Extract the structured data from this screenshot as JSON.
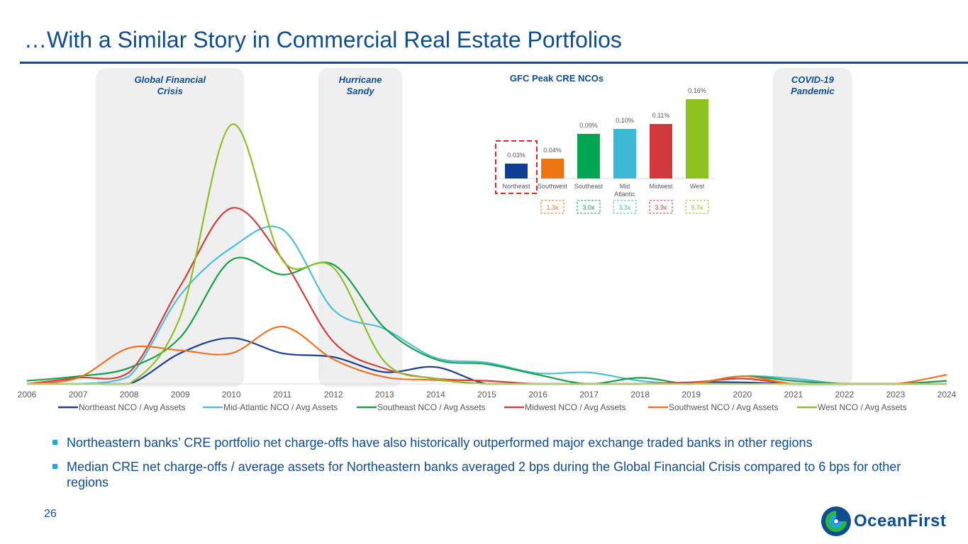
{
  "page": {
    "title": "…With a Similar Story in Commercial Real Estate Portfolios",
    "page_number": "26",
    "bullets": [
      "Northeastern banks’ CRE portfolio net charge-offs have also historically outperformed major exchange traded banks in other regions",
      "Median CRE net charge-offs / average assets for Northeastern banks averaged 2 bps during the Global Financial Crisis compared to 6 bps for other regions"
    ],
    "logo": {
      "text": "OceanFirst",
      "colors": [
        "#0f4d8c",
        "#2db34a",
        "#20a6e0"
      ]
    }
  },
  "colors": {
    "title": "#0f4d8c",
    "bullet_square": "#20a6e0",
    "event_band": "#efefef"
  },
  "chart_data": [
    {
      "type": "line",
      "title": "",
      "xlabel": "",
      "ylabel": "",
      "x": [
        2006,
        2007,
        2008,
        2009,
        2010,
        2011,
        2012,
        2013,
        2014,
        2015,
        2016,
        2017,
        2018,
        2019,
        2020,
        2021,
        2022,
        2023,
        2024
      ],
      "xlim": [
        2006,
        2024
      ],
      "ylim": [
        0,
        0.2
      ],
      "grid": false,
      "legend_position": "bottom",
      "events": [
        {
          "label": "Global Financial Crisis",
          "from": 2007.35,
          "to": 2010.25
        },
        {
          "label": "Hurricane Sandy",
          "from": 2011.7,
          "to": 2013.35
        },
        {
          "label": "COVID-19 Pandemic",
          "from": 2020.6,
          "to": 2022.15
        }
      ],
      "series": [
        {
          "name": "Northeast NCO / Avg Assets",
          "color": "#1a3f8f",
          "values": [
            0,
            0,
            0,
            0.0237,
            0.0354,
            0.0236,
            0.0207,
            0.0091,
            0.013,
            0,
            0,
            0,
            0,
            0.0012,
            0.0012,
            0,
            0,
            0,
            0
          ]
        },
        {
          "name": "Mid-Atlantic NCO / Avg Assets",
          "color": "#4cbfd6",
          "values": [
            0,
            0,
            0.0058,
            0.0684,
            0.105,
            0.1192,
            0.0571,
            0.0424,
            0.0201,
            0.0165,
            0.0082,
            0.0088,
            0.0024,
            0,
            0.0059,
            0.0041,
            0,
            0,
            0
          ]
        },
        {
          "name": "Southeast NCO / Avg Assets",
          "color": "#17a04a",
          "values": [
            0.0024,
            0.0059,
            0.0124,
            0.0359,
            0.0955,
            0.0843,
            0.092,
            0.0431,
            0.0189,
            0.0153,
            0.0071,
            0,
            0.0047,
            0,
            0.0059,
            0.0024,
            0,
            0,
            0.0024
          ]
        },
        {
          "name": "Midwest NCO / Avg Assets",
          "color": "#d23f3f",
          "values": [
            0,
            0.0047,
            0.0089,
            0.0755,
            0.1356,
            0.0962,
            0.0324,
            0.0118,
            0.0041,
            0.0024,
            0,
            0,
            0,
            0.0012,
            0.0041,
            0,
            0,
            0,
            0
          ]
        },
        {
          "name": "Southwest NCO / Avg Assets",
          "color": "#ed7422",
          "values": [
            0,
            0.0047,
            0.0277,
            0.0259,
            0.0236,
            0.0442,
            0.0189,
            0.0053,
            0.003,
            0,
            0,
            0,
            0,
            0,
            0.0059,
            0,
            0,
            0,
            0.0071
          ]
        },
        {
          "name": "West NCO / Avg Assets",
          "color": "#8fbe2b",
          "values": [
            0,
            0,
            0,
            0.0519,
            0.2,
            0.0955,
            0.0896,
            0.0171,
            0.0041,
            0,
            0,
            0,
            0,
            0,
            0,
            0,
            0,
            0,
            0
          ]
        }
      ]
    },
    {
      "type": "bar",
      "title": "GFC Peak CRE NCOs",
      "xlabel": "",
      "ylabel": "",
      "categories": [
        "Northeast",
        "Southwest",
        "Southeast",
        "Mid Atlantic",
        "Midwest",
        "West"
      ],
      "values": [
        0.03,
        0.04,
        0.09,
        0.1,
        0.11,
        0.16
      ],
      "labels": [
        "0.03%",
        "0.04%",
        "0.09%",
        "0.10%",
        "0.11%",
        "0.16%"
      ],
      "colors": [
        "#0f3d91",
        "#ee7312",
        "#00a651",
        "#3cb8d4",
        "#d2393e",
        "#8dc21f"
      ],
      "ylim": [
        0,
        0.16
      ],
      "highlight": "Northeast",
      "multiples": [
        "",
        "1.3x",
        "3.0x",
        "3.3x",
        "3.9x",
        "5.7x"
      ]
    }
  ]
}
